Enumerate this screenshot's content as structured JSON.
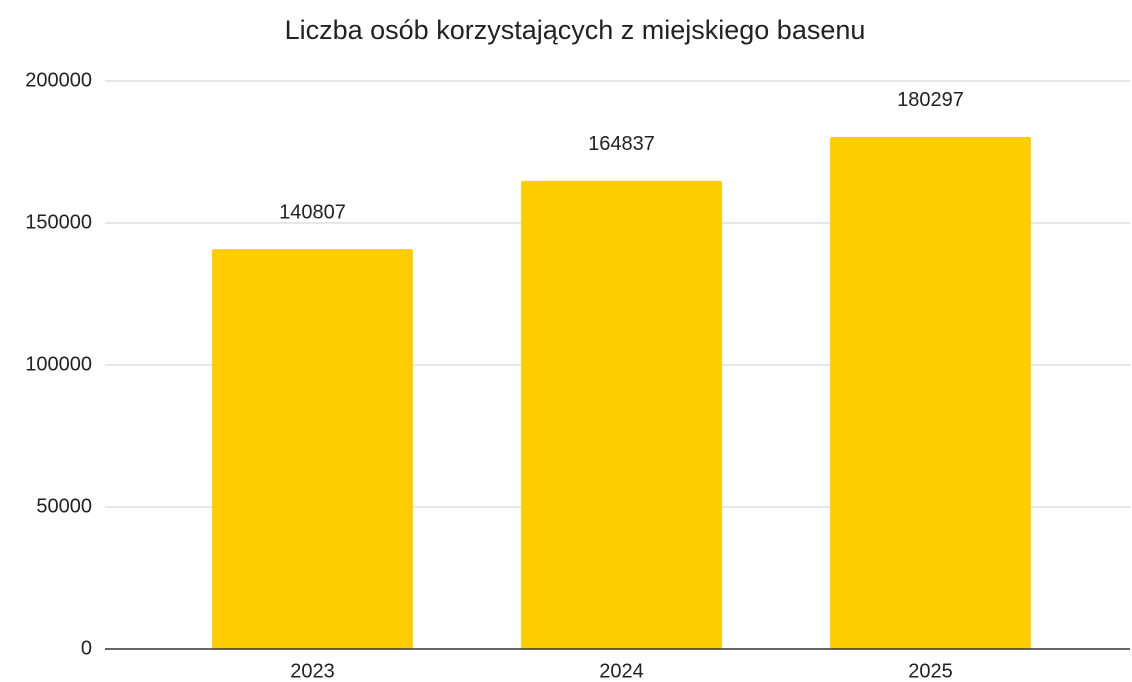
{
  "chart_data": {
    "type": "bar",
    "title": "Liczba osób korzystających z miejskiego basenu",
    "categories": [
      "2023",
      "2024",
      "2025"
    ],
    "values": [
      140807,
      164837,
      180297
    ],
    "color": "#ffcc00",
    "ylim": [
      0,
      200000
    ],
    "yticks": [
      0,
      50000,
      100000,
      150000,
      200000
    ],
    "grid": true,
    "data_labels": true
  }
}
